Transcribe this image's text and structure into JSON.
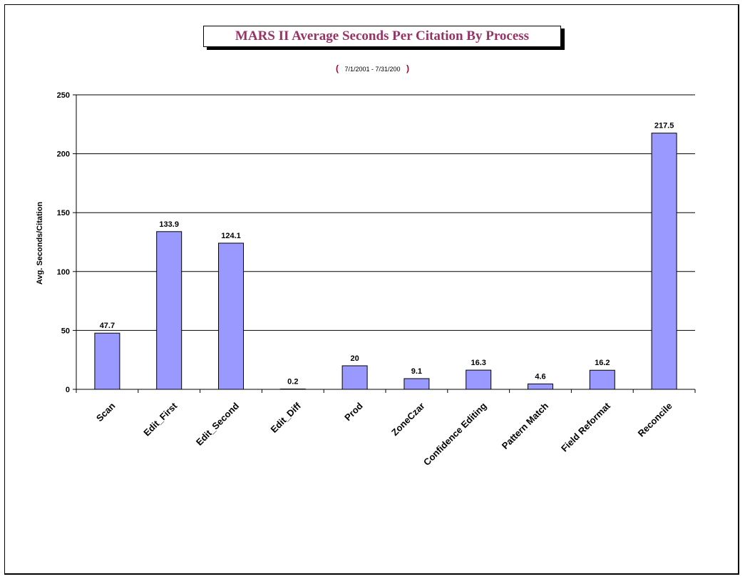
{
  "chart_data": {
    "type": "bar",
    "title": "MARS II  Average Seconds Per Citation By Process",
    "subtitle": {
      "open": "(",
      "range": "7/1/2001  -  7/31/200",
      "close": ")"
    },
    "xlabel": "",
    "ylabel": "Avg. Seconds/Citation",
    "categories": [
      "Scan",
      "Edit_First",
      "Edit_Second",
      "Edit_Diff",
      "Prod",
      "ZoneCzar",
      "Confidence Editing",
      "Pattern Match",
      "Field Reformat",
      "Reconcile"
    ],
    "values": [
      47.7,
      133.9,
      124.1,
      0.2,
      20,
      9.1,
      16.3,
      4.6,
      16.2,
      217.5
    ],
    "data_labels": [
      "47.7",
      "133.9",
      "124.1",
      "0.2",
      "20",
      "9.1",
      "16.3",
      "4.6",
      "16.2",
      "217.5"
    ],
    "ylim": [
      0,
      250
    ],
    "yticks": [
      0,
      50,
      100,
      150,
      200,
      250
    ],
    "grid": true,
    "legend": "none",
    "bar_color": "#9999FF",
    "title_color": "#993366"
  }
}
